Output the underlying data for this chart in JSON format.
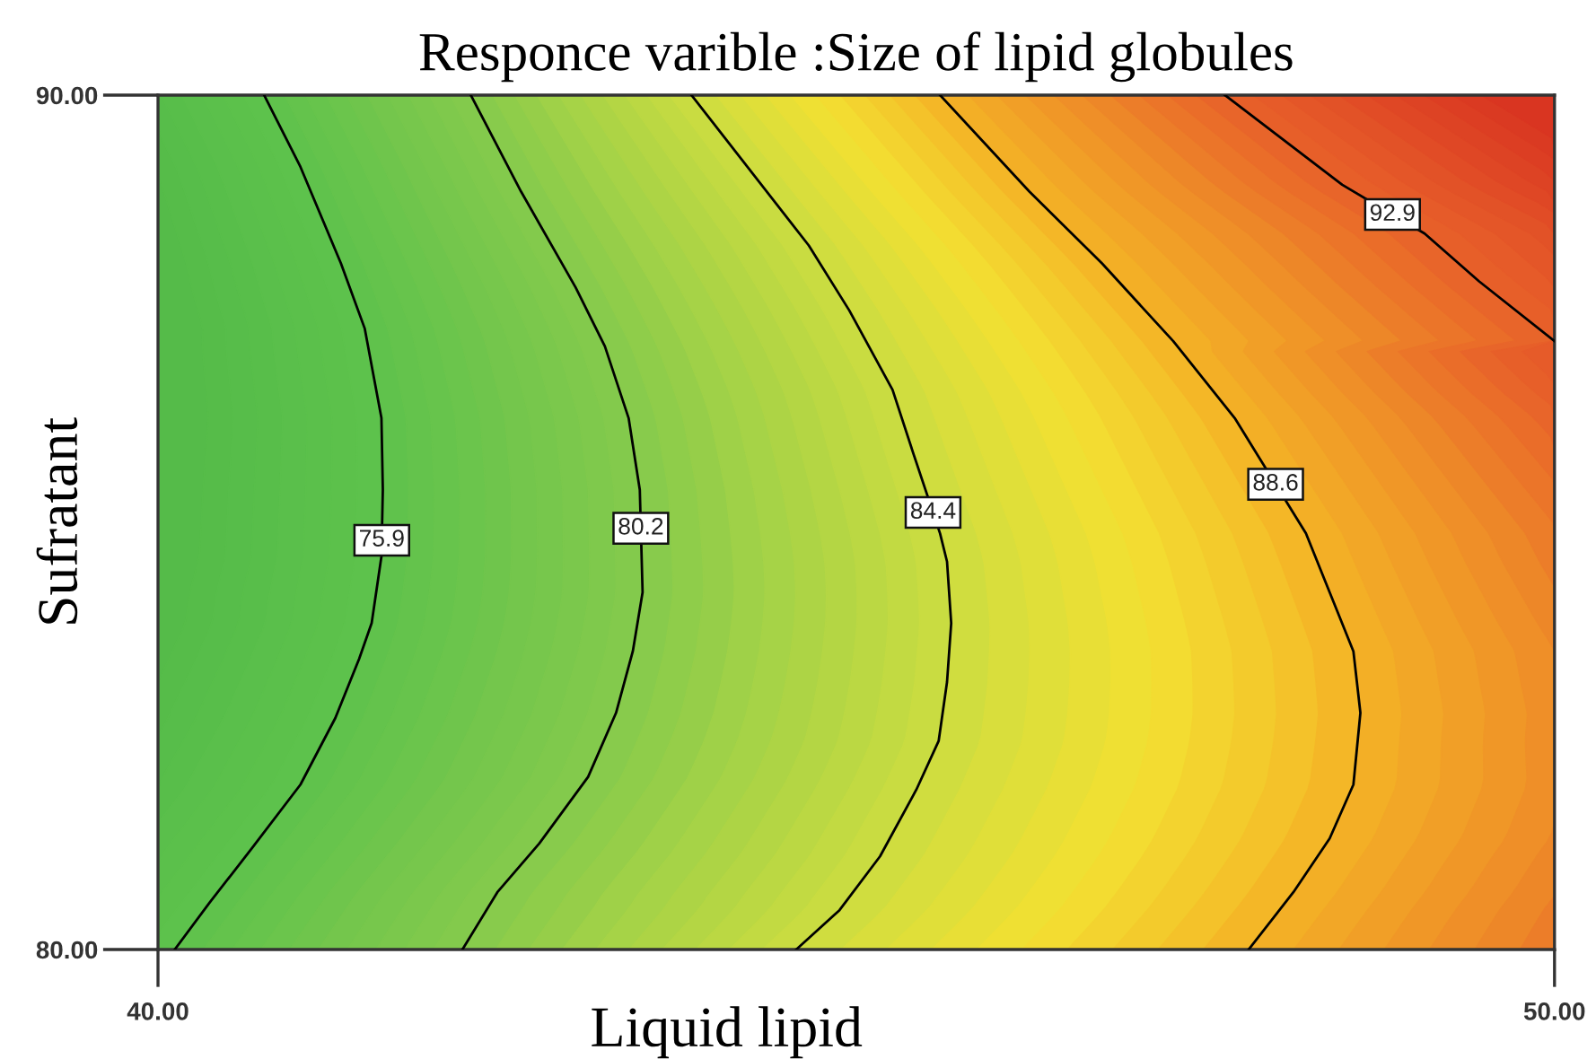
{
  "chart_data": {
    "type": "line",
    "title": "Responce varible :Size of lipid globules",
    "xlabel": "Liquid lipid",
    "ylabel": "Sufratant",
    "xlim": [
      40,
      50
    ],
    "ylim": [
      80,
      90
    ],
    "xticks": [
      {
        "value": 40,
        "label": "40.00"
      },
      {
        "value": 50,
        "label": "50.00"
      }
    ],
    "yticks": [
      {
        "value": 80,
        "label": "80.00"
      },
      {
        "value": 90,
        "label": "90.00"
      }
    ],
    "series": [
      {
        "name": "75.9",
        "color": "#000000",
        "x": [
          40.76,
          41.02,
          41.31,
          41.48,
          41.6,
          41.61,
          41.6,
          41.53,
          41.44,
          41.27,
          41.02,
          40.67,
          40.37,
          40.12
        ],
        "values": [
          90,
          89.16,
          88.03,
          87.27,
          86.22,
          85.38,
          84.6,
          83.82,
          83.4,
          82.71,
          81.93,
          81.18,
          80.55,
          80
        ]
      },
      {
        "name": "80.2",
        "color": "#000000",
        "x": [
          42.24,
          42.6,
          42.99,
          43.2,
          43.37,
          43.45,
          43.47,
          43.4,
          43.28,
          43.08,
          42.73,
          42.43,
          42.18
        ],
        "values": [
          90,
          88.87,
          87.75,
          87.06,
          86.22,
          85.38,
          84.18,
          83.49,
          82.77,
          82.02,
          81.24,
          80.67,
          80
        ]
      },
      {
        "name": "84.4",
        "color": "#000000",
        "x": [
          43.82,
          44.66,
          44.95,
          45.26,
          45.41,
          45.6,
          45.65,
          45.68,
          45.65,
          45.59,
          45.43,
          45.17,
          44.88,
          44.57
        ],
        "values": [
          90,
          88.24,
          87.48,
          86.55,
          85.8,
          84.87,
          84.54,
          83.82,
          83.13,
          82.44,
          81.87,
          81.09,
          80.46,
          80
        ]
      },
      {
        "name": "88.6",
        "color": "#000000",
        "x": [
          45.6,
          46.24,
          46.76,
          47.27,
          47.71,
          48.22,
          48.39,
          48.56,
          48.61,
          48.56,
          48.39,
          48.13,
          47.81
        ],
        "values": [
          90,
          88.87,
          88.03,
          87.12,
          86.22,
          84.87,
          84.18,
          83.49,
          82.77,
          81.93,
          81.3,
          80.67,
          80
        ]
      },
      {
        "name": "92.9",
        "color": "#000000",
        "x": [
          47.64,
          48.48,
          49.07,
          49.46,
          50
        ],
        "values": [
          90,
          88.95,
          88.38,
          87.82,
          87.12
        ]
      }
    ]
  }
}
